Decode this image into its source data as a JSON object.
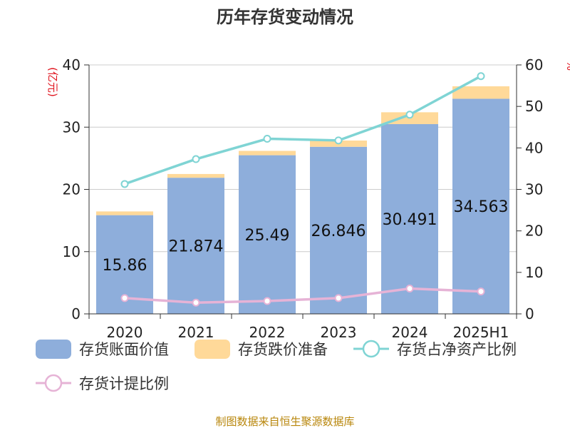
{
  "chart_data": {
    "type": "bar",
    "title": "历年存货变动情况",
    "categories": [
      "2020",
      "2021",
      "2022",
      "2023",
      "2024",
      "2025H1"
    ],
    "y_left": {
      "label": "(亿元)",
      "lim": [
        0,
        40
      ],
      "ticks": [
        "0",
        "10",
        "20",
        "30",
        "40"
      ]
    },
    "y_right": {
      "label": "%",
      "lim": [
        0,
        60
      ],
      "ticks": [
        "0",
        "10",
        "20",
        "30",
        "40",
        "50",
        "60"
      ]
    },
    "series": [
      {
        "name": "存货账面价值",
        "kind": "bar-stack",
        "color": "#8eaedb",
        "values": [
          15.86,
          21.874,
          25.49,
          26.846,
          30.491,
          34.563
        ],
        "labels": [
          "15.86",
          "21.874",
          "25.49",
          "26.846",
          "30.491",
          "34.563"
        ]
      },
      {
        "name": "存货跌价准备",
        "kind": "bar-stack",
        "color": "#ffd999",
        "values": [
          0.6,
          0.6,
          0.7,
          1.0,
          1.9,
          2.0
        ]
      },
      {
        "name": "存货占净资产比例",
        "kind": "line",
        "axis": "right",
        "color": "#7fd4d4",
        "values": [
          31.3,
          37.3,
          42.2,
          41.8,
          48.0,
          57.3
        ]
      },
      {
        "name": "存货计提比例",
        "kind": "line",
        "axis": "right",
        "color": "#e6b3d6",
        "values": [
          3.8,
          2.7,
          3.1,
          3.8,
          6.1,
          5.4
        ]
      }
    ],
    "grid": true,
    "legend_position": "bottom"
  },
  "source_text": "制图数据来自恒生聚源数据库"
}
